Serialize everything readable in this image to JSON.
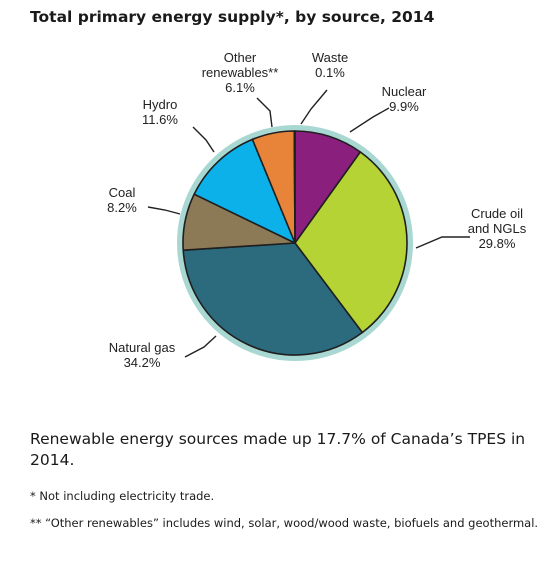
{
  "chart_data": {
    "type": "pie",
    "title": "Total primary energy supply*, by source, 2014",
    "unit": "%",
    "slices": [
      {
        "label_lines": [
          "Nuclear"
        ],
        "pct_label": "9.9%",
        "value": 9.9,
        "color": "#8a1f7d"
      },
      {
        "label_lines": [
          "Crude oil",
          "and NGLs"
        ],
        "pct_label": "29.8%",
        "value": 29.8,
        "color": "#b5d334"
      },
      {
        "label_lines": [
          "Natural gas"
        ],
        "pct_label": "34.2%",
        "value": 34.2,
        "color": "#2b6b7d"
      },
      {
        "label_lines": [
          "Coal"
        ],
        "pct_label": "8.2%",
        "value": 8.2,
        "color": "#8c7a57"
      },
      {
        "label_lines": [
          "Hydro"
        ],
        "pct_label": "11.6%",
        "value": 11.6,
        "color": "#0bb1e8"
      },
      {
        "label_lines": [
          "Other",
          "renewables**"
        ],
        "pct_label": "6.1%",
        "value": 6.1,
        "color": "#e8843a"
      },
      {
        "label_lines": [
          "Waste"
        ],
        "pct_label": "0.1%",
        "value": 0.1,
        "color": "#5c2d91"
      }
    ],
    "ring_color": "#a9d8d3"
  },
  "summary": "Renewable energy sources made up 17.7% of Canada’s TPES in 2014.",
  "footnotes": [
    "* Not including electricity trade.",
    "** “Other renewables” includes wind, solar, wood/wood waste, biofuels and geothermal."
  ]
}
